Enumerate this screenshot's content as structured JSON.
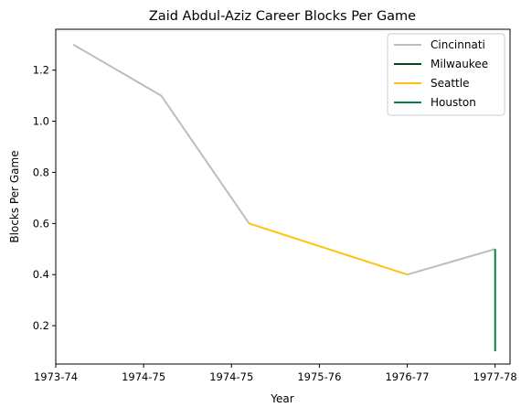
{
  "chart_data": {
    "type": "line",
    "title": "Zaid Abdul-Aziz Career Blocks Per Game",
    "xlabel": "Year",
    "ylabel": "Blocks Per Game",
    "x_ticks": [
      {
        "x": 0,
        "label": "1973-74"
      },
      {
        "x": 1,
        "label": "1974-75"
      },
      {
        "x": 2,
        "label": "1974-75"
      },
      {
        "x": 3,
        "label": "1975-76"
      },
      {
        "x": 4,
        "label": "1976-77"
      },
      {
        "x": 5,
        "label": "1977-78"
      }
    ],
    "y_ticks": [
      0.2,
      0.4,
      0.6,
      0.8,
      1.0,
      1.2
    ],
    "y_tick_labels": [
      "0.2",
      "0.4",
      "0.6",
      "0.8",
      "1.0",
      "1.2"
    ],
    "xlim": [
      0,
      5.17
    ],
    "ylim": [
      0.05,
      1.36
    ],
    "grid": false,
    "legend_position": "top-right",
    "series": [
      {
        "name": "Cincinnati",
        "color": "#bdbdbd",
        "segments": [
          [
            [
              0.2,
              1.3
            ],
            [
              1.2,
              1.1
            ],
            [
              2.2,
              0.6
            ]
          ],
          [
            [
              4.0,
              0.4
            ],
            [
              5.0,
              0.5
            ]
          ]
        ]
      },
      {
        "name": "Milwaukee",
        "color": "#00471b",
        "segments": []
      },
      {
        "name": "Seattle",
        "color": "#ffc20e",
        "segments": [
          [
            [
              2.2,
              0.6
            ],
            [
              4.0,
              0.4
            ]
          ]
        ]
      },
      {
        "name": "Houston",
        "color": "#00843d",
        "segments": [
          [
            [
              5.0,
              0.5
            ],
            [
              5.0,
              0.1
            ]
          ]
        ]
      }
    ]
  }
}
